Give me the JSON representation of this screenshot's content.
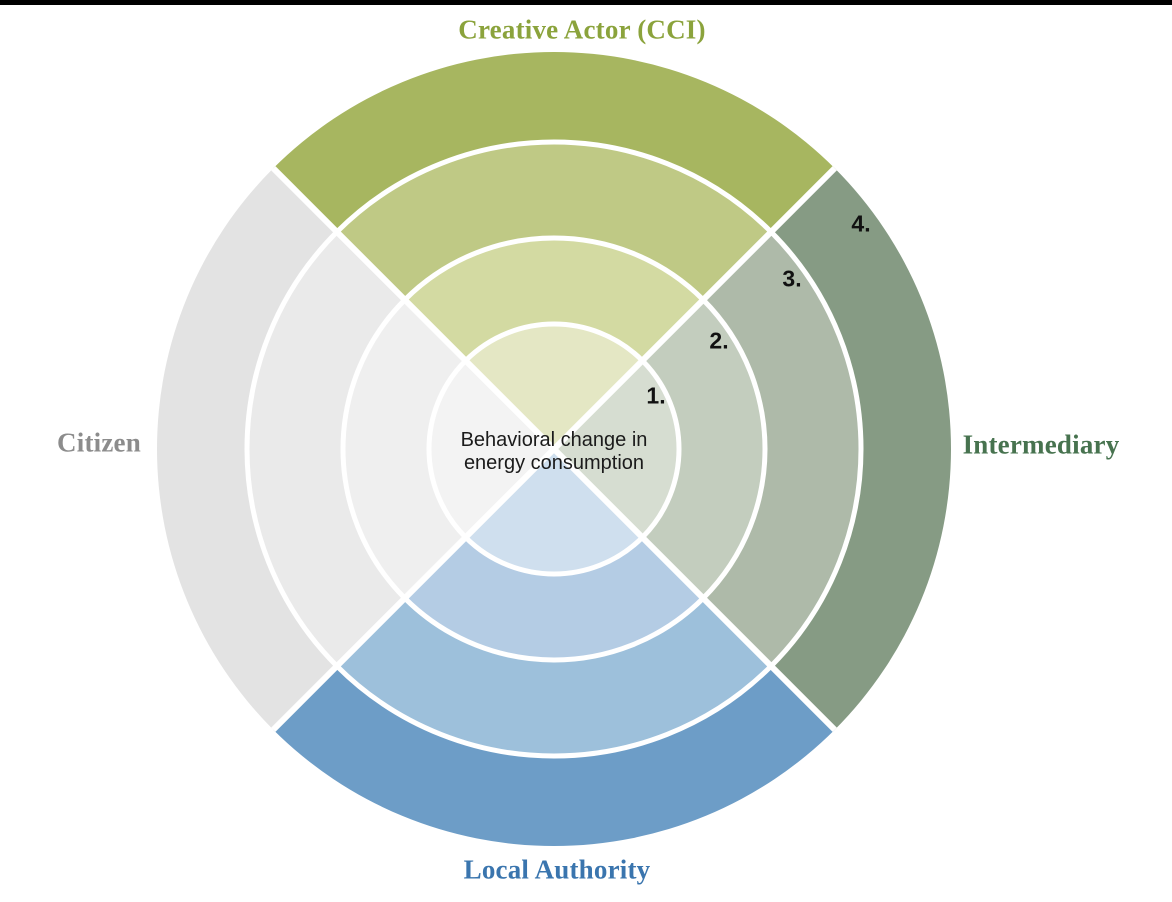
{
  "page": {
    "top_border_color": "#000000",
    "background_color": "#ffffff"
  },
  "figure": {
    "type": "concentric-quadrant-stakeholder-wheel",
    "center_text": {
      "line1": "Behavioral change in",
      "line2": "energy consumption"
    },
    "ring_labels": [
      "1.",
      "2.",
      "3.",
      "4."
    ],
    "separator_color": "#ffffff",
    "ring_label_color": "#111111",
    "quadrants": [
      {
        "name": "Creative Actor (CCI)",
        "position": "top",
        "label_color": "#8ba33c",
        "ring_colors": [
          "#e4e7c4",
          "#d3daa2",
          "#bfc985",
          "#a7b660"
        ]
      },
      {
        "name": "Intermediary",
        "position": "right",
        "label_color": "#47734f",
        "ring_colors": [
          "#d6ddd1",
          "#c3cdbe",
          "#aebaa9",
          "#869b84"
        ]
      },
      {
        "name": "Local Authority",
        "position": "bottom",
        "label_color": "#3a75ae",
        "ring_colors": [
          "#cfdfee",
          "#b4cce4",
          "#9dc0db",
          "#6d9dc7"
        ]
      },
      {
        "name": "Citizen",
        "position": "left",
        "label_color": "#8c8c8c",
        "ring_colors": [
          "#f3f3f3",
          "#efefef",
          "#eaeaea",
          "#e3e3e3"
        ]
      }
    ]
  }
}
